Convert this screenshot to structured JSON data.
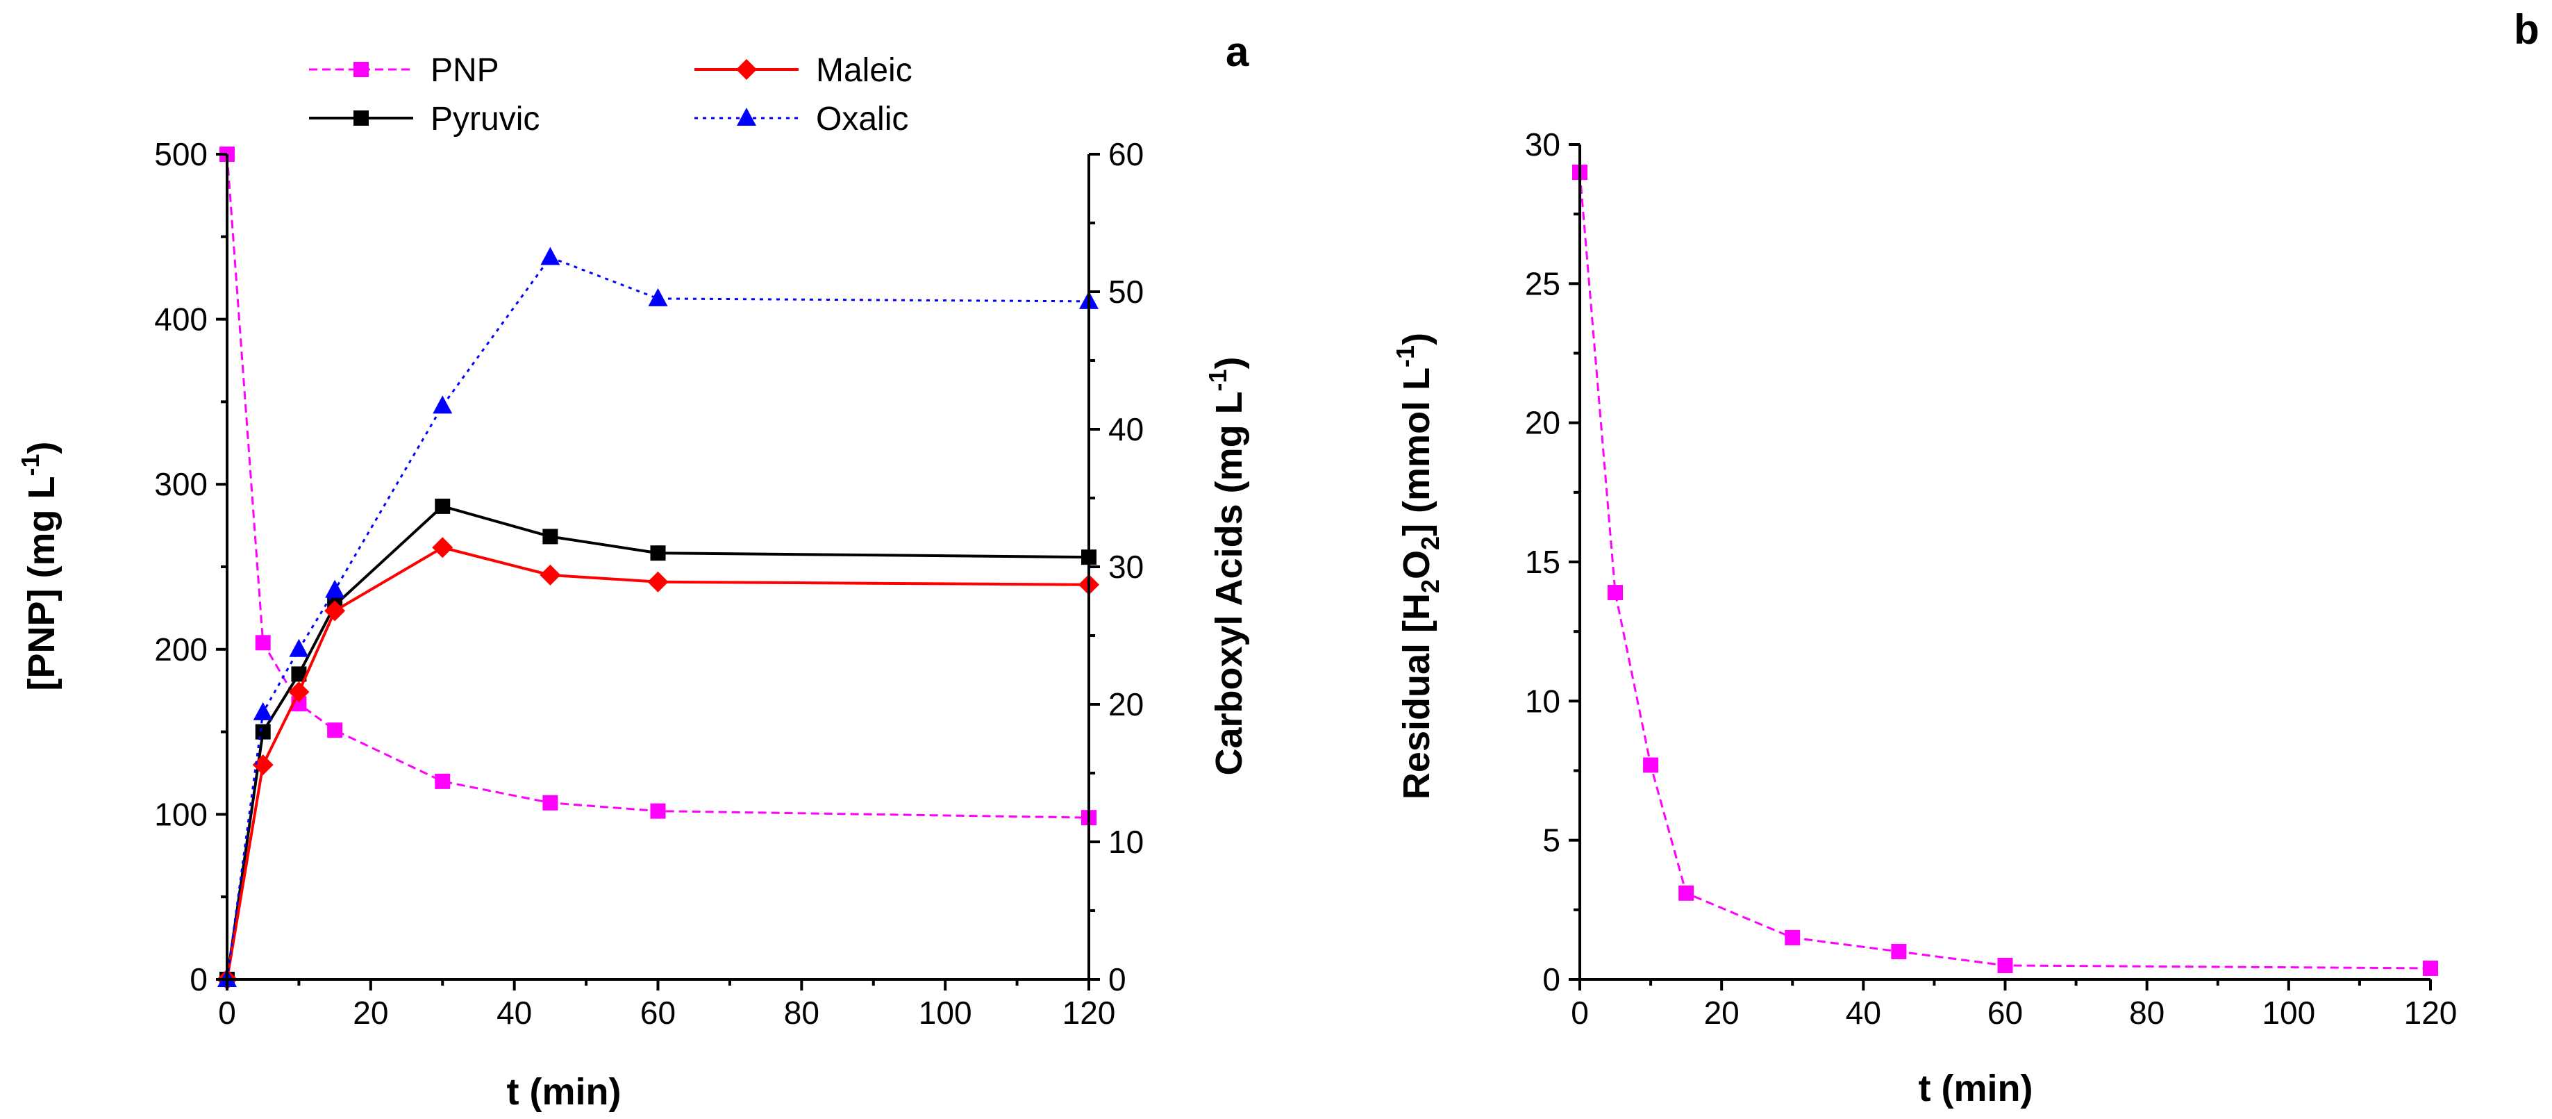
{
  "chart_data": [
    {
      "type": "line",
      "panel_label": "a",
      "xlabel": "t (min)",
      "ylabel_left": {
        "main": "[PNP] (mg L",
        "sup": "-1",
        "end": ")"
      },
      "ylabel_right": {
        "main": "Carboxyl Acids (mg L",
        "sup": "-1",
        "end": ")"
      },
      "xlim": [
        0,
        120
      ],
      "xticks": [
        0,
        20,
        40,
        60,
        80,
        100,
        120
      ],
      "ylim_left": [
        0,
        500
      ],
      "yticks_left": [
        0,
        100,
        200,
        300,
        400,
        500
      ],
      "ylim_right": [
        0,
        60
      ],
      "yticks_right": [
        0,
        10,
        20,
        30,
        40,
        50,
        60
      ],
      "legend_position": "top",
      "series": [
        {
          "name": "PNP",
          "axis": "left",
          "color": "#ff00ff",
          "marker": "square",
          "dash": "dashed",
          "x": [
            0,
            5,
            10,
            15,
            30,
            45,
            60,
            120
          ],
          "y": [
            500,
            204,
            167,
            151,
            120,
            107,
            102,
            98
          ]
        },
        {
          "name": "Pyruvic",
          "axis": "right",
          "color": "#000000",
          "marker": "square",
          "dash": "solid",
          "x": [
            0,
            5,
            10,
            15,
            30,
            45,
            60,
            120
          ],
          "y": [
            0,
            18.0,
            22.2,
            27.2,
            34.4,
            32.2,
            31.0,
            30.7
          ]
        },
        {
          "name": "Maleic",
          "axis": "right",
          "color": "#ff0000",
          "marker": "diamond",
          "dash": "solid",
          "x": [
            0,
            5,
            10,
            15,
            30,
            45,
            60,
            120
          ],
          "y": [
            0,
            15.6,
            20.9,
            26.8,
            31.4,
            29.4,
            28.9,
            28.7
          ]
        },
        {
          "name": "Oxalic",
          "axis": "right",
          "color": "#0000ff",
          "marker": "triangle",
          "dash": "dotted",
          "x": [
            0,
            5,
            10,
            15,
            30,
            45,
            60,
            120
          ],
          "y": [
            0,
            19.4,
            24.0,
            28.3,
            41.7,
            52.5,
            49.5,
            49.3
          ]
        }
      ]
    },
    {
      "type": "line",
      "panel_label": "b",
      "xlabel": "t (min)",
      "ylabel": {
        "pre": "Residual [H",
        "sub1": "2",
        "mid": "O",
        "sub2": "2",
        "post": "] (mmol L",
        "sup": "-1",
        "end": ")"
      },
      "xlim": [
        0,
        120
      ],
      "xticks": [
        0,
        20,
        40,
        60,
        80,
        100,
        120
      ],
      "ylim": [
        0,
        30
      ],
      "yticks": [
        0,
        5,
        10,
        15,
        20,
        25,
        30
      ],
      "series": [
        {
          "name": "Residual H2O2",
          "color": "#ff00ff",
          "marker": "square",
          "dash": "dashed",
          "x": [
            0,
            5,
            10,
            15,
            30,
            45,
            60,
            120
          ],
          "y": [
            29.0,
            13.9,
            7.7,
            3.1,
            1.5,
            1.0,
            0.5,
            0.4
          ]
        }
      ]
    }
  ]
}
